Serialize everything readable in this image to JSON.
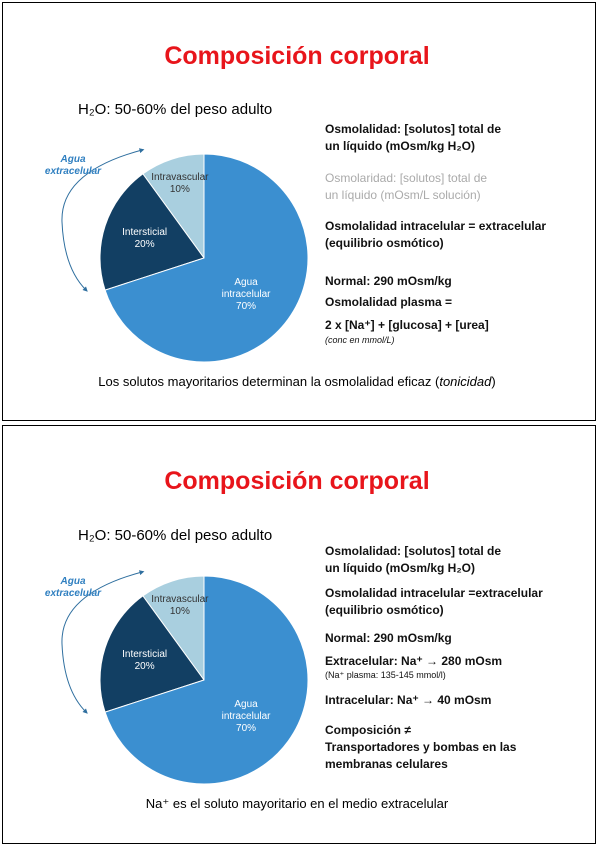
{
  "slides": [
    {
      "title": "Composición corporal",
      "subtitle": "H₂O: 50-60% del peso adulto",
      "notes": [
        "Osmolalidad: [solutos] total de",
        "un líquido (mOsm/kg H₂O)",
        "Osmolaridad: [solutos] total de",
        "un líquido (mOsm/L solución)",
        "Osmolalidad intracelular = extracelular",
        "(equilibrio osmótico)",
        "Normal: 290 mOsm/kg",
        "Osmolalidad plasma =",
        "2 x [Na⁺] + [glucosa] + [urea]",
        "(conc en mmol/L)"
      ],
      "footer": [
        "Los solutos mayoritarios determinan la osmolalidad eficaz (",
        "tonicidad",
        ")"
      ]
    },
    {
      "title": "Composición corporal",
      "subtitle": "H₂O: 50-60% del peso adulto",
      "notes": [
        "Osmolalidad: [solutos] total de",
        "un líquido (mOsm/kg H₂O)",
        "Osmolalidad intracelular =extracelular",
        "(equilibrio osmótico)",
        "Normal: 290 mOsm/kg",
        "Extracelular: Na⁺ → 280 mOsm",
        "(Na⁺ plasma: 135-145 mmol/l)",
        "Intracelular: Na⁺ → 40 mOsm",
        "Composición ≠",
        "Transportadores y bombas en las",
        "membranas celulares"
      ],
      "footer": [
        "Na⁺ es el soluto mayoritario en el medio extracelular"
      ]
    }
  ],
  "chart_data": [
    {
      "type": "pie",
      "categories": [
        "Intravascular",
        "Intersticial",
        "Agua intracelular"
      ],
      "values": [
        10,
        20,
        70
      ],
      "value_labels": [
        "10%",
        "20%",
        "70%"
      ],
      "colors": [
        "#a9cfdf",
        "#123f63",
        "#3b8fd0"
      ],
      "annotation": "Agua extracelular"
    },
    {
      "type": "pie",
      "categories": [
        "Intravascular",
        "Intersticial",
        "Agua intracelular"
      ],
      "values": [
        10,
        20,
        70
      ],
      "value_labels": [
        "10%",
        "20%",
        "70%"
      ],
      "colors": [
        "#a9cfdf",
        "#123f63",
        "#3b8fd0"
      ],
      "annotation": "Agua extracelular"
    }
  ]
}
